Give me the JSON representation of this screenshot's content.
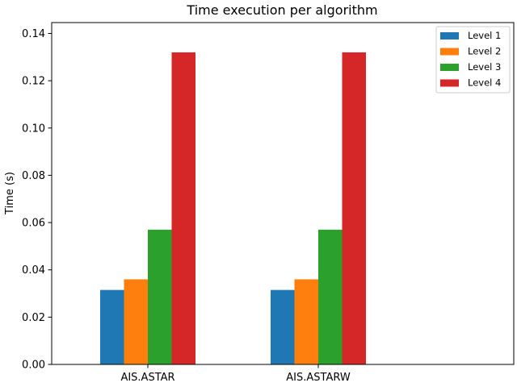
{
  "chart_data": {
    "type": "bar",
    "title": "Time execution per algorithm",
    "xlabel": "",
    "ylabel": "Time (s)",
    "categories": [
      "AIS.ASTAR",
      "AIS.ASTARW"
    ],
    "series": [
      {
        "name": "Level 1",
        "color": "#1f77b4",
        "values": [
          0.0315,
          0.0315
        ]
      },
      {
        "name": "Level 2",
        "color": "#ff7f0e",
        "values": [
          0.036,
          0.036
        ]
      },
      {
        "name": "Level 3",
        "color": "#2ca02c",
        "values": [
          0.057,
          0.057
        ]
      },
      {
        "name": "Level 4",
        "color": "#d62728",
        "values": [
          0.132,
          0.132
        ]
      }
    ],
    "ylim": [
      0,
      0.1446
    ],
    "yticks": [
      0.0,
      0.02,
      0.04,
      0.06,
      0.08,
      0.1,
      0.12,
      0.14
    ],
    "ytick_labels": [
      "0.00",
      "0.02",
      "0.04",
      "0.06",
      "0.08",
      "0.10",
      "0.12",
      "0.14"
    ],
    "grid": false,
    "legend_position": "top-right"
  }
}
